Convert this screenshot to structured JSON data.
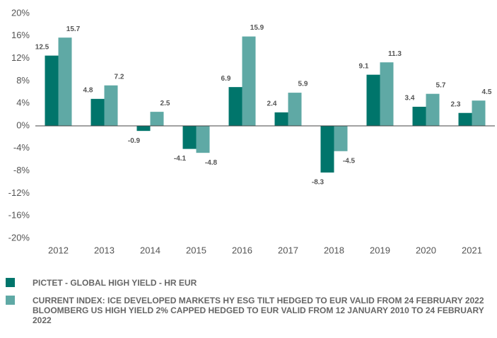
{
  "chart_data": {
    "type": "bar",
    "categories": [
      "2012",
      "2013",
      "2014",
      "2015",
      "2016",
      "2017",
      "2018",
      "2019",
      "2020",
      "2021"
    ],
    "series": [
      {
        "name": "PICTET - GLOBAL HIGH YIELD - HR EUR",
        "color": "#00756b",
        "values": [
          12.5,
          4.8,
          -0.9,
          -4.1,
          6.9,
          2.4,
          -8.3,
          9.1,
          3.4,
          2.3
        ]
      },
      {
        "name": "CURRENT INDEX: ICE DEVELOPED MARKETS HY ESG TILT HEDGED TO EUR VALID FROM 24 FEBRUARY 2022",
        "color": "#5fa9a5",
        "values": [
          15.7,
          7.2,
          2.5,
          -4.8,
          15.9,
          5.9,
          -4.5,
          11.3,
          5.7,
          4.5
        ]
      }
    ],
    "legend_note": "BLOOMBERG US HIGH YIELD 2% CAPPED HEDGED TO EUR VALID FROM 12 JANUARY 2010 TO 24 FEBRUARY 2022",
    "ylim": [
      -20,
      20
    ],
    "yticks": [
      {
        "value": -20,
        "label": "-20%"
      },
      {
        "value": -16,
        "label": "-16%"
      },
      {
        "value": -12,
        "label": "-12%"
      },
      {
        "value": -8,
        "label": "-8%"
      },
      {
        "value": -4,
        "label": "-4%"
      },
      {
        "value": 0,
        "label": "0%"
      },
      {
        "value": 4,
        "label": "4%"
      },
      {
        "value": 8,
        "label": "8%"
      },
      {
        "value": 12,
        "label": "12%"
      },
      {
        "value": 16,
        "label": "16%"
      },
      {
        "value": 20,
        "label": "20%"
      }
    ],
    "grid": false
  }
}
